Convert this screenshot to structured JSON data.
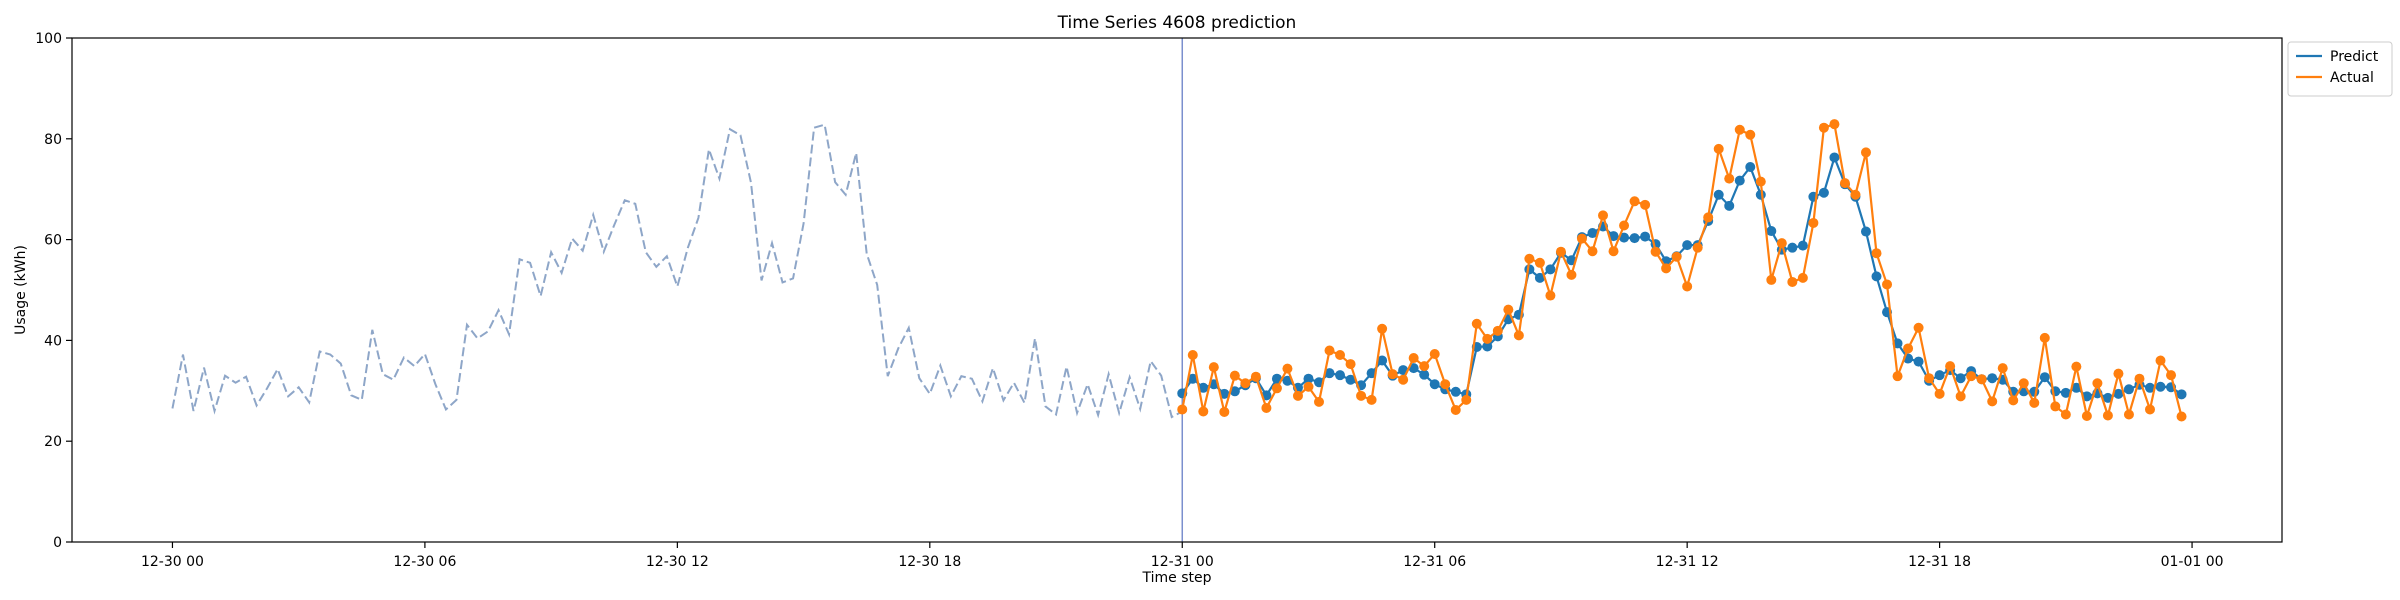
{
  "chart_data": {
    "type": "line",
    "title": "Time Series 4608 prediction",
    "xlabel": "Time step",
    "ylabel": "Usage (kWh)",
    "ylim": [
      0,
      100
    ],
    "yticks": [
      "0",
      "20",
      "40",
      "60",
      "80",
      "100"
    ],
    "xticks": [
      "12-30 00",
      "12-30 06",
      "12-30 12",
      "12-30 18",
      "12-31 00",
      "12-31 06",
      "12-31 12",
      "12-31 18",
      "01-01 00"
    ],
    "xtick_values": [
      "2023-12-30 00:00",
      "2023-12-30 06:00",
      "2023-12-30 12:00",
      "2023-12-30 18:00",
      "2023-12-31 00:00",
      "2023-12-31 06:00",
      "2023-12-31 12:00",
      "2023-12-31 18:00",
      "2024-01-01 00:00"
    ],
    "forecast_start": "2023-12-31 00:00",
    "step_minutes": 15,
    "legend_position": "top-right (outside)",
    "history": {
      "start": "2023-12-30 00:00",
      "step_minutes": 15,
      "color": "#8ea6c8",
      "style": "dashed",
      "values": [
        26.5,
        37.2,
        26.0,
        34.6,
        26.0,
        33.0,
        31.6,
        32.8,
        27.1,
        30.5,
        34.3,
        28.9,
        30.7,
        27.7,
        37.8,
        37.2,
        35.4,
        29.1,
        28.2,
        42.1,
        33.3,
        32.2,
        36.6,
        34.9,
        37.3,
        31.3,
        26.3,
        28.2,
        43.1,
        40.4,
        41.8,
        46.0,
        41.2,
        56.1,
        55.4,
        48.8,
        57.5,
        53.4,
        60.2,
        57.8,
        64.9,
        57.6,
        62.9,
        67.8,
        67.1,
        57.5,
        54.6,
        56.7,
        50.7,
        58.4,
        64.3,
        77.9,
        72.1,
        81.9,
        80.7,
        71.3,
        51.9,
        59.3,
        51.5,
        52.3,
        63.2,
        82.2,
        82.8,
        71.4,
        68.9,
        77.2,
        57.2,
        51.0,
        32.9,
        38.4,
        42.5,
        32.5,
        29.4,
        35.0,
        28.9,
        32.9,
        32.4,
        27.9,
        34.5,
        28.1,
        31.6,
        27.6,
        40.4,
        26.9,
        25.3,
        34.8,
        25.6,
        31.3,
        25.2,
        33.3,
        25.6,
        32.7,
        26.4,
        35.9,
        33.0,
        24.8,
        25.9
      ]
    },
    "series": [
      {
        "name": "Predict",
        "color": "#1f77b4",
        "values": [
          29.5,
          32.4,
          30.6,
          31.3,
          29.4,
          29.9,
          31.1,
          32.5,
          29.1,
          32.4,
          32.0,
          30.6,
          32.4,
          31.7,
          33.5,
          33.1,
          32.2,
          31.1,
          33.5,
          36.0,
          33.0,
          34.1,
          34.5,
          33.2,
          31.3,
          30.3,
          29.8,
          29.3,
          38.7,
          38.8,
          40.8,
          44.2,
          45.1,
          54.1,
          52.4,
          54.1,
          57.4,
          55.9,
          60.5,
          61.3,
          62.6,
          60.7,
          60.4,
          60.3,
          60.6,
          59.1,
          55.7,
          56.7,
          58.9,
          58.9,
          63.7,
          68.9,
          66.7,
          71.7,
          74.4,
          68.9,
          61.7,
          58.0,
          58.4,
          58.8,
          68.5,
          69.3,
          76.3,
          71.0,
          68.5,
          61.6,
          52.7,
          45.6,
          39.4,
          36.4,
          35.8,
          32.0,
          33.1,
          34.1,
          32.5,
          33.9,
          32.3,
          32.5,
          32.2,
          29.8,
          29.9,
          29.8,
          32.7,
          29.9,
          29.6,
          30.6,
          28.9,
          29.5,
          28.6,
          29.4,
          30.3,
          31.2,
          30.6,
          30.8,
          30.7,
          29.3
        ]
      },
      {
        "name": "Actual",
        "color": "#ff7f0e",
        "values": [
          26.3,
          37.1,
          25.9,
          34.7,
          25.8,
          33.0,
          31.5,
          32.8,
          26.6,
          30.5,
          34.4,
          29.0,
          30.8,
          27.8,
          38.0,
          37.1,
          35.3,
          29.0,
          28.2,
          42.3,
          33.3,
          32.2,
          36.5,
          34.9,
          37.3,
          31.3,
          26.2,
          28.2,
          43.3,
          40.3,
          41.9,
          46.1,
          41.0,
          56.2,
          55.4,
          48.9,
          57.6,
          53.0,
          60.2,
          57.7,
          64.8,
          57.7,
          62.8,
          67.6,
          66.9,
          57.6,
          54.3,
          56.6,
          50.7,
          58.4,
          64.4,
          78.0,
          72.1,
          81.8,
          80.8,
          71.5,
          52.0,
          59.3,
          51.6,
          52.4,
          63.3,
          82.2,
          82.9,
          71.2,
          68.9,
          77.3,
          57.3,
          51.1,
          32.9,
          38.4,
          42.5,
          32.5,
          29.4,
          34.9,
          28.9,
          32.9,
          32.3,
          27.9,
          34.5,
          28.1,
          31.5,
          27.6,
          40.5,
          26.9,
          25.3,
          34.8,
          25.0,
          31.5,
          25.1,
          33.4,
          25.3,
          32.4,
          26.3,
          36.0,
          33.1,
          24.9
        ]
      }
    ]
  }
}
